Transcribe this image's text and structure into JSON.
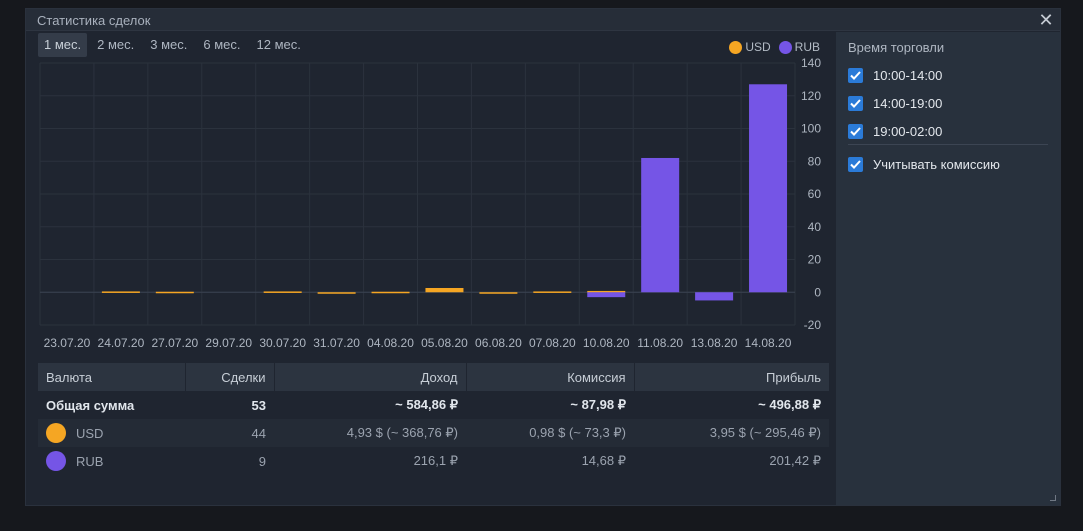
{
  "window": {
    "title": "Статистика сделок"
  },
  "periods": [
    "1 мес.",
    "2 мес.",
    "3 мес.",
    "6 мес.",
    "12 мес."
  ],
  "active_period": 0,
  "legend": [
    {
      "label": "USD",
      "color": "#f5a623"
    },
    {
      "label": "RUB",
      "color": "#7555e6"
    }
  ],
  "chart_data": {
    "type": "bar",
    "categories": [
      "23.07.20",
      "24.07.20",
      "27.07.20",
      "29.07.20",
      "30.07.20",
      "31.07.20",
      "04.08.20",
      "05.08.20",
      "06.08.20",
      "07.08.20",
      "10.08.20",
      "11.08.20",
      "13.08.20",
      "14.08.20"
    ],
    "series": [
      {
        "name": "USD",
        "color": "#f5a623",
        "values": [
          0,
          0.5,
          0.3,
          0,
          0.5,
          -0.8,
          0.3,
          2.6,
          -0.6,
          0.5,
          0.8,
          0,
          0,
          0
        ]
      },
      {
        "name": "RUB",
        "color": "#7555e6",
        "values": [
          0,
          0,
          0,
          0,
          0,
          0,
          0,
          0,
          0,
          0,
          -3,
          82,
          -5,
          127
        ]
      }
    ],
    "yticks": [
      140,
      120,
      100,
      80,
      60,
      40,
      20,
      0,
      -20
    ],
    "ylim": [
      -20,
      140
    ],
    "grid": true
  },
  "table": {
    "columns": [
      "Валюта",
      "Сделки",
      "Доход",
      "Комиссия",
      "Прибыль"
    ],
    "total": {
      "label": "Общая сумма",
      "deals": "53",
      "income": "~ 584,86 ₽",
      "commission": "~ 87,98 ₽",
      "profit": "~ 496,88 ₽"
    },
    "rows": [
      {
        "currency": "USD",
        "color": "#f5a623",
        "deals": "44",
        "income": "4,93 $ (~ 368,76 ₽)",
        "commission": "0,98 $ (~ 73,3 ₽)",
        "profit": "3,95 $ (~ 295,46 ₽)"
      },
      {
        "currency": "RUB",
        "color": "#7555e6",
        "deals": "9",
        "income": "216,1 ₽",
        "commission": "14,68 ₽",
        "profit": "201,42 ₽"
      }
    ]
  },
  "side": {
    "title": "Время торговли",
    "checks": [
      {
        "label": "10:00-14:00",
        "checked": true
      },
      {
        "label": "14:00-19:00",
        "checked": true
      },
      {
        "label": "19:00-02:00",
        "checked": true
      }
    ],
    "commission": {
      "label": "Учитывать комиссию",
      "checked": true
    }
  }
}
